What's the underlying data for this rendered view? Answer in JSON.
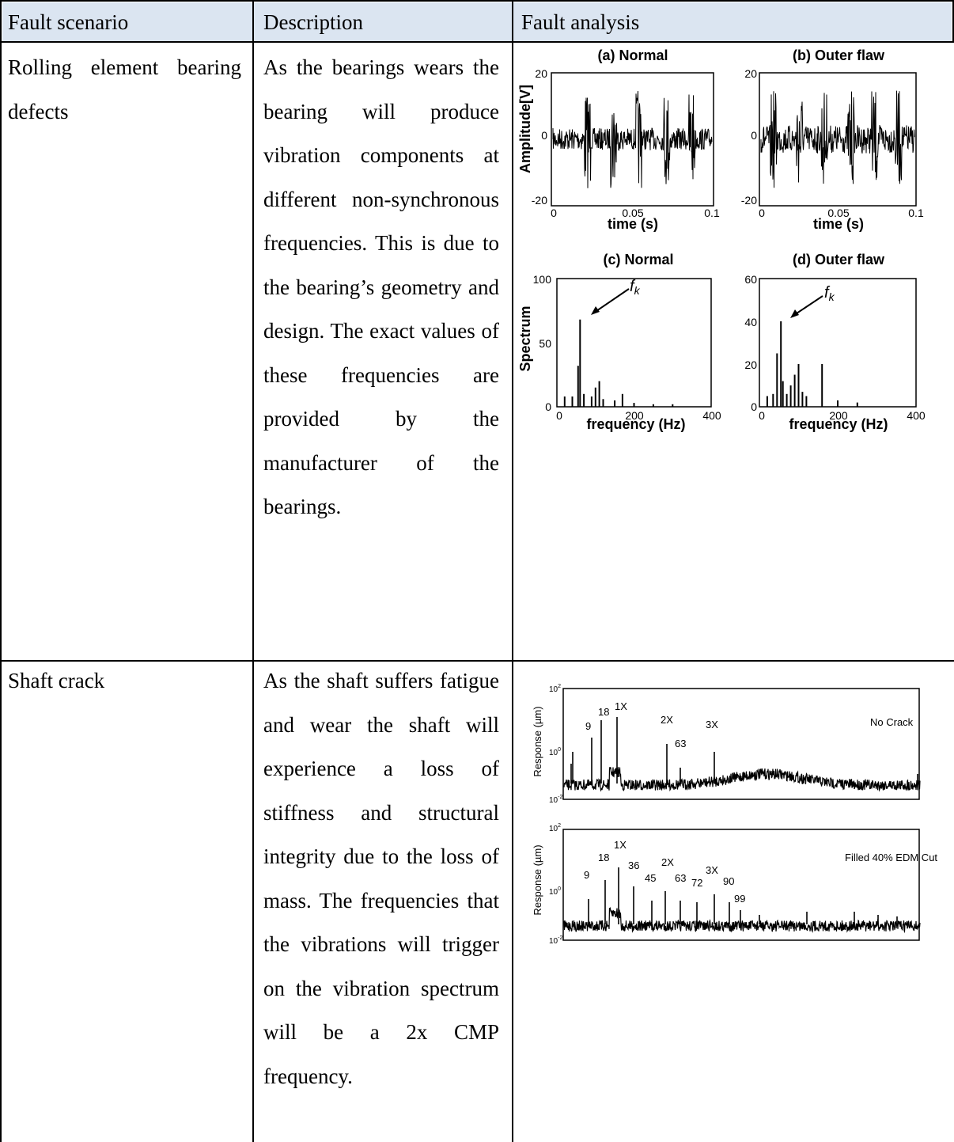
{
  "table": {
    "headers": [
      "Fault scenario",
      "Description",
      "Fault analysis"
    ],
    "rows": [
      {
        "scenario": "Rolling element bearing defects",
        "description": "As the bearings wears the bearing will produce vibration components at different non-synchronous frequencies. This is due to the bearing’s geometry and design. The exact values of these frequencies are provided by the manufacturer of the bearings."
      },
      {
        "scenario": "Shaft crack",
        "description": "As the shaft suffers fatigue and wear the shaft will experience a loss of stiffness and structural integrity due to the loss of mass. The frequencies that the vibrations will trigger on the vibration spectrum will be a 2x CMP frequency."
      }
    ]
  },
  "bearing_figure": {
    "panels": {
      "a": {
        "title": "(a) Normal",
        "ylabel": "Amplitude[V]",
        "xlabel": "time (s)",
        "yticks": [
          "20",
          "0",
          "-20"
        ],
        "xticks": [
          "0",
          "0.05",
          "0.1"
        ]
      },
      "b": {
        "title": "(b) Outer flaw",
        "xlabel": "time (s)",
        "yticks": [
          "20",
          "0",
          "-20"
        ],
        "xticks": [
          "0",
          "0.05",
          "0.1"
        ]
      },
      "c": {
        "title": "(c) Normal",
        "ylabel": "Spectrum",
        "xlabel": "frequency (Hz)",
        "yticks": [
          "100",
          "50",
          "0"
        ],
        "xticks": [
          "0",
          "200",
          "400"
        ],
        "annotation": "f",
        "annotation_sub": "k"
      },
      "d": {
        "title": "(d) Outer flaw",
        "xlabel": "frequency (Hz)",
        "yticks": [
          "60",
          "40",
          "20",
          "0"
        ],
        "xticks": [
          "0",
          "200",
          "400"
        ],
        "annotation": "f",
        "annotation_sub": "k"
      }
    }
  },
  "chart_data": [
    {
      "type": "bar",
      "title": "(c) Normal",
      "xlabel": "frequency (Hz)",
      "ylabel": "Spectrum",
      "xlim": [
        0,
        400
      ],
      "ylim": [
        0,
        100
      ],
      "x": [
        20,
        40,
        55,
        60,
        70,
        90,
        100,
        110,
        120,
        150,
        170,
        200,
        250,
        300
      ],
      "values": [
        8,
        8,
        32,
        68,
        10,
        8,
        15,
        20,
        6,
        5,
        10,
        3,
        2,
        2
      ]
    },
    {
      "type": "bar",
      "title": "(d) Outer flaw",
      "xlabel": "frequency (Hz)",
      "xlim": [
        0,
        400
      ],
      "ylim": [
        0,
        60
      ],
      "x": [
        20,
        35,
        45,
        55,
        60,
        70,
        80,
        90,
        100,
        110,
        120,
        160,
        200,
        250
      ],
      "values": [
        5,
        6,
        25,
        40,
        12,
        6,
        10,
        15,
        20,
        7,
        5,
        20,
        3,
        2
      ]
    }
  ],
  "crack_figure": {
    "top": {
      "ylabel": "Response (µm)",
      "legend": "No Crack",
      "ticks": [
        "10",
        "10",
        "10"
      ],
      "tick_exps": [
        "2",
        "0",
        "-2"
      ],
      "labels": [
        "9",
        "18",
        "1X",
        "2X",
        "63",
        "3X"
      ]
    },
    "bottom": {
      "ylabel": "Response (µm)",
      "legend": "Filled 40% EDM Cut",
      "ticks": [
        "10",
        "10",
        "10"
      ],
      "tick_exps": [
        "2",
        "0",
        "-2"
      ],
      "labels": [
        "9",
        "18",
        "1X",
        "36",
        "45",
        "2X",
        "63",
        "72",
        "3X",
        "90",
        "99"
      ]
    }
  }
}
